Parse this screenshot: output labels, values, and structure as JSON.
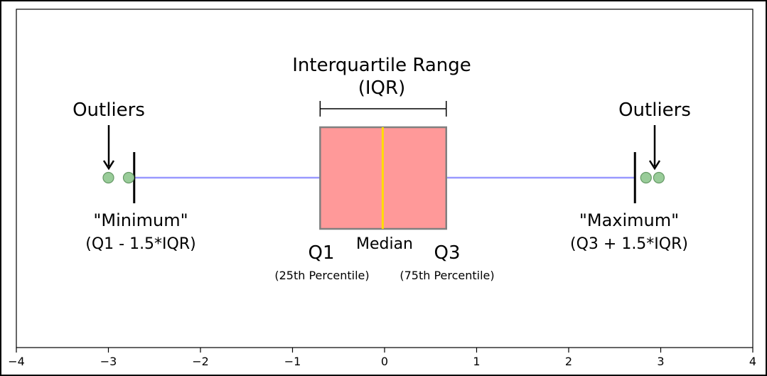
{
  "chart_data": {
    "type": "boxplot",
    "xlim": [
      -4,
      4
    ],
    "x_ticks": [
      -4,
      -3,
      -2,
      -1,
      0,
      1,
      2,
      3,
      4
    ],
    "x_tick_labels": [
      "−4",
      "−3",
      "−2",
      "−1",
      "0",
      "1",
      "2",
      "3",
      "4"
    ],
    "box": {
      "q1": -0.7,
      "median": -0.02,
      "q3": 0.67,
      "whisker_low": -2.72,
      "whisker_high": 2.72
    },
    "outliers": [
      -3.0,
      -2.78,
      2.84,
      2.98
    ],
    "colors": {
      "box_fill": "#ff9999",
      "box_edge": "#808080",
      "median": "#ffdd00",
      "whisker": "#9999ff",
      "outlier_fill": "#99cc99",
      "outlier_edge": "#669966"
    },
    "annotations": {
      "iqr_title": "Interquartile Range",
      "iqr_abbrev": "(IQR)",
      "outliers_left": "Outliers",
      "outliers_right": "Outliers",
      "minimum": "\"Minimum\"",
      "minimum_formula": "(Q1 - 1.5*IQR)",
      "maximum": "\"Maximum\"",
      "maximum_formula": "(Q3 + 1.5*IQR)",
      "q1": "Q1",
      "q1_desc": "(25th Percentile)",
      "q3": "Q3",
      "q3_desc": "(75th Percentile)",
      "median": "Median"
    }
  }
}
